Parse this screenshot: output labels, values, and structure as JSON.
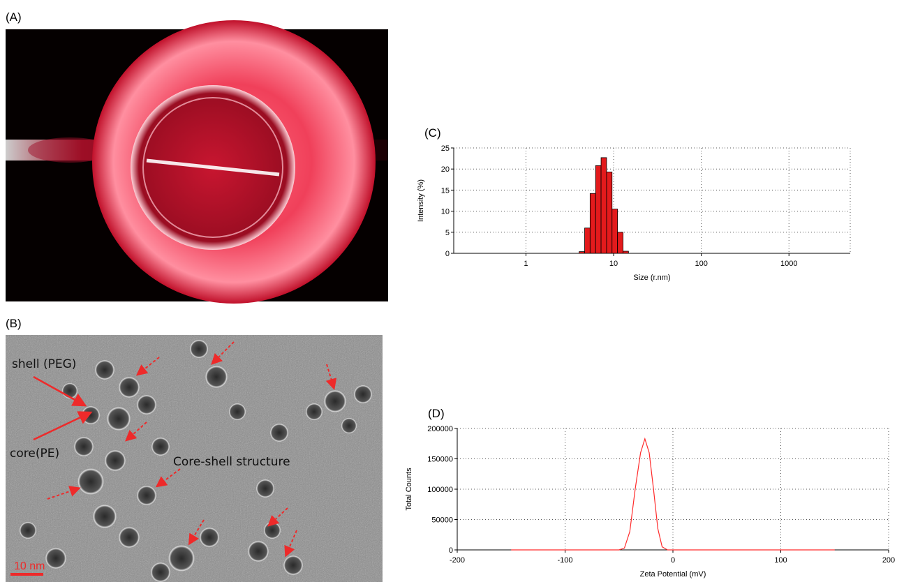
{
  "figure": {
    "panel_labels": [
      "(A)",
      "(B)"
    ],
    "tem_annotations": {
      "shell": "shell (PEG)",
      "core": "core(PE)",
      "structure": "Core-shell structure",
      "scale_bar": "10 nm"
    }
  },
  "chart_data": [
    {
      "type": "histogram",
      "panel_label": "(C)",
      "x_label": "Size (r.nm)",
      "y_label": "Intensity (%)",
      "x_scale": "log",
      "bins": [
        4.04,
        4.67,
        5.39,
        6.23,
        7.19,
        8.31,
        9.59,
        11.08,
        12.8,
        14.78
      ],
      "values": [
        0.4,
        6,
        14.2,
        20.8,
        22.7,
        19.3,
        10.5,
        5,
        0.5
      ],
      "color": "#e31a1c",
      "xlim": [
        0.15,
        5000
      ],
      "ylim": [
        0,
        25
      ],
      "xticks": [
        1,
        10,
        100,
        1000
      ],
      "yticks": [
        0,
        5,
        10,
        15,
        20,
        25
      ],
      "grid": true
    },
    {
      "type": "line",
      "panel_label": "(D)",
      "x_label": "Zeta Potential (mV)",
      "y_label": "Total Counts",
      "x": [
        -150,
        -50,
        -45,
        -40,
        -35,
        -30,
        -26,
        -22,
        -18,
        -14,
        -10,
        -5,
        150
      ],
      "values": [
        0,
        0,
        3000,
        30000,
        100000,
        160000,
        183000,
        160000,
        100000,
        35000,
        5000,
        0,
        0
      ],
      "color": "#ff2a2a",
      "xlim": [
        -200,
        200
      ],
      "ylim": [
        0,
        200000
      ],
      "xticks": [
        -200,
        -100,
        0,
        100,
        200
      ],
      "yticks": [
        0,
        50000,
        100000,
        150000,
        200000
      ],
      "grid": true
    }
  ]
}
